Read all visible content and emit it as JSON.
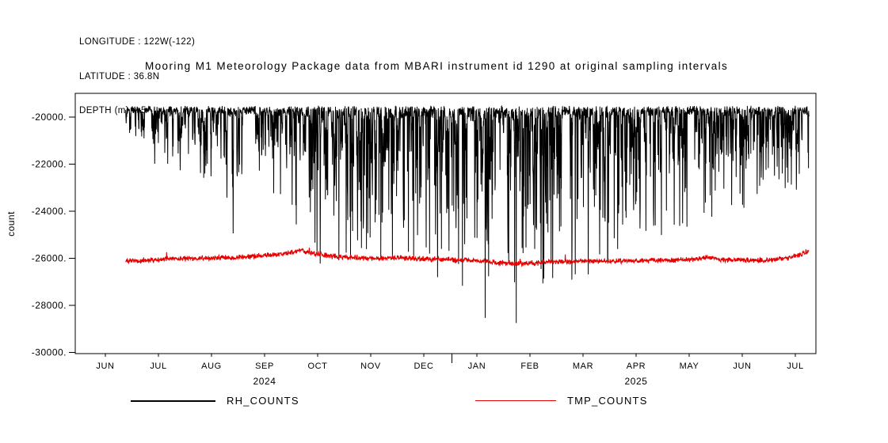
{
  "header": {
    "longitude": "LONGITUDE : 122W(-122)",
    "latitude": "LATITUDE : 36.8N",
    "depth": "DEPTH (m) : -5"
  },
  "legend": {
    "items": [
      {
        "label": "RH_COUNTS",
        "color": "#000000"
      },
      {
        "label": "TMP_COUNTS",
        "color": "#e60000"
      }
    ]
  },
  "chart_data": {
    "type": "line",
    "title": "Mooring M1 Meteorology Package data from MBARI instrument id 1290 at original sampling intervals",
    "xlabel": "",
    "ylabel": "count",
    "ylim": [
      -30050,
      -18990
    ],
    "grid": false,
    "legend_position": "bottom",
    "yticks": [
      {
        "value": -20000,
        "label": "-20000."
      },
      {
        "value": -22000,
        "label": "-22000."
      },
      {
        "value": -24000,
        "label": "-24000."
      },
      {
        "value": -26000,
        "label": "-26000."
      },
      {
        "value": -28000,
        "label": "-28000."
      },
      {
        "value": -30000,
        "label": "-30000."
      }
    ],
    "x_axis": {
      "unit": "month",
      "tick_labels": [
        "JUN",
        "JUL",
        "AUG",
        "SEP",
        "OCT",
        "NOV",
        "DEC",
        "JAN",
        "FEB",
        "MAR",
        "APR",
        "MAY",
        "JUN",
        "JUL"
      ],
      "year_labels": [
        {
          "text": "2024",
          "tick_index": 3
        },
        {
          "text": "2025",
          "tick_index": 10
        }
      ],
      "year_boundary_tick_index": 6.53,
      "data_start": 0.38,
      "data_end": 13.26
    },
    "series": [
      {
        "name": "RH_COUNTS",
        "color": "#000000",
        "style": "dense-noise-spikes-down",
        "baseline_top": -19520,
        "top_jitter": 260,
        "envelope": {
          "x": [
            0.38,
            0.7,
            1.0,
            1.4,
            1.8,
            2.05,
            2.3,
            2.45,
            2.6,
            3.0,
            3.4,
            3.8,
            4.02,
            4.1,
            4.3,
            4.7,
            5.0,
            5.4,
            5.8,
            6.2,
            6.6,
            7.0,
            7.15,
            7.3,
            7.5,
            7.7,
            7.85,
            8.1,
            8.5,
            9.0,
            9.5,
            10.0,
            10.5,
            11.0,
            11.5,
            12.0,
            12.5,
            13.0,
            13.26
          ],
          "max_dip": [
            2100,
            2600,
            2750,
            2850,
            3300,
            3900,
            4400,
            6400,
            3900,
            3700,
            4300,
            5600,
            7200,
            9900,
            6900,
            6600,
            7000,
            7400,
            6900,
            7200,
            7800,
            8800,
            9600,
            8200,
            8000,
            9500,
            8600,
            8100,
            7700,
            7200,
            6600,
            6200,
            5800,
            5300,
            4700,
            4300,
            3900,
            3600,
            3700
          ]
        }
      },
      {
        "name": "TMP_COUNTS",
        "color": "#e60000",
        "style": "noisy-flat-band",
        "noise_amplitude": 95,
        "center": {
          "x": [
            0.38,
            0.8,
            1.2,
            1.6,
            2.0,
            2.4,
            2.8,
            3.2,
            3.5,
            3.7,
            3.9,
            4.2,
            4.6,
            5.0,
            5.4,
            5.8,
            6.2,
            6.6,
            7.0,
            7.4,
            7.8,
            8.2,
            8.6,
            9.0,
            9.4,
            9.8,
            10.2,
            10.6,
            11.0,
            11.3,
            11.6,
            12.0,
            12.4,
            12.8,
            13.1,
            13.26
          ],
          "value": [
            -26120,
            -26080,
            -26040,
            -26010,
            -25990,
            -25960,
            -25920,
            -25840,
            -25740,
            -25670,
            -25800,
            -25900,
            -25960,
            -26010,
            -25980,
            -26010,
            -26040,
            -26070,
            -26090,
            -26190,
            -26230,
            -26180,
            -26150,
            -26140,
            -26120,
            -26110,
            -26100,
            -26080,
            -26050,
            -25960,
            -26060,
            -26070,
            -26100,
            -26020,
            -25850,
            -25680
          ]
        }
      }
    ]
  }
}
